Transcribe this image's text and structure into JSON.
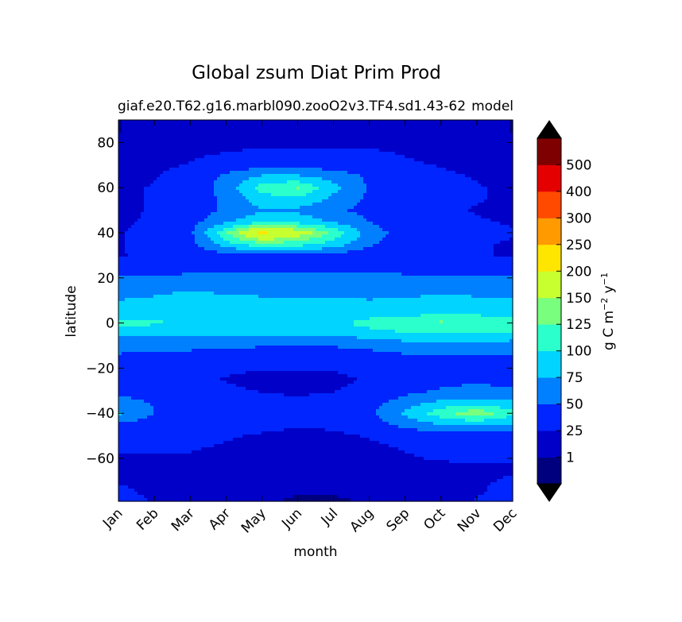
{
  "chart_data": {
    "type": "heatmap",
    "title": "Global zsum Diat Prim Prod",
    "subtitle_left": "giaf.e20.T62.g16.marbl090.zooO2v3.TF4.sd1.43-62",
    "subtitle_right": "model",
    "xlabel": "month",
    "ylabel": "latitude",
    "x_categories": [
      "Jan",
      "Feb",
      "Mar",
      "Apr",
      "May",
      "Jun",
      "Jul",
      "Aug",
      "Sep",
      "Oct",
      "Nov",
      "Dec"
    ],
    "ylim": [
      -79,
      90
    ],
    "yticks": [
      80,
      60,
      40,
      20,
      0,
      -20,
      -40,
      -60
    ],
    "ytick_labels": [
      "80",
      "60",
      "40",
      "20",
      "0",
      "−20",
      "−40",
      "−60"
    ],
    "colorbar": {
      "label_main": "g C m",
      "label_sup1": "−2",
      "label_mid": " y",
      "label_sup2": "−1",
      "levels": [
        0,
        1,
        25,
        50,
        75,
        100,
        125,
        150,
        200,
        250,
        300,
        400,
        500
      ],
      "tick_labels": [
        "1",
        "25",
        "50",
        "75",
        "100",
        "125",
        "150",
        "200",
        "250",
        "300",
        "400",
        "500"
      ],
      "extend": "both",
      "colors": [
        "#00007f",
        "#0000c8",
        "#0025ff",
        "#0080ff",
        "#00d4ff",
        "#2bffcb",
        "#79ff7d",
        "#c8ff2e",
        "#ffe600",
        "#ff9a00",
        "#ff4a00",
        "#e40000",
        "#7f0000"
      ],
      "under_color": "#000000",
      "over_color": "#000000"
    },
    "field": {
      "lat": [
        90,
        85,
        80,
        75,
        70,
        65,
        60,
        55,
        50,
        45,
        40,
        35,
        30,
        25,
        20,
        15,
        10,
        5,
        0,
        -5,
        -10,
        -15,
        -20,
        -25,
        -30,
        -35,
        -40,
        -45,
        -50,
        -55,
        -60,
        -65,
        -70,
        -75,
        -79
      ],
      "values": [
        [
          0,
          12,
          12,
          18,
          18,
          18,
          18,
          18,
          16,
          14,
          12,
          0
        ],
        [
          0,
          14,
          14,
          18,
          18,
          18,
          18,
          18,
          18,
          14,
          12,
          0
        ],
        [
          12,
          16,
          18,
          20,
          22,
          22,
          22,
          22,
          20,
          16,
          14,
          12
        ],
        [
          16,
          18,
          22,
          26,
          28,
          28,
          28,
          28,
          24,
          20,
          16,
          16
        ],
        [
          18,
          22,
          26,
          34,
          40,
          40,
          38,
          34,
          28,
          24,
          20,
          18
        ],
        [
          20,
          24,
          32,
          55,
          78,
          78,
          66,
          45,
          32,
          28,
          24,
          20
        ],
        [
          22,
          26,
          34,
          60,
          110,
          128,
          82,
          48,
          34,
          30,
          26,
          22
        ],
        [
          22,
          26,
          34,
          56,
          90,
          95,
          70,
          45,
          34,
          30,
          26,
          22
        ],
        [
          22,
          26,
          34,
          55,
          72,
          70,
          55,
          42,
          34,
          28,
          24,
          22
        ],
        [
          22,
          28,
          40,
          70,
          92,
          90,
          70,
          50,
          36,
          30,
          26,
          24
        ],
        [
          24,
          30,
          45,
          120,
          205,
          170,
          118,
          62,
          38,
          32,
          28,
          26
        ],
        [
          24,
          30,
          42,
          90,
          118,
          112,
          90,
          55,
          36,
          30,
          26,
          24
        ],
        [
          24,
          28,
          32,
          40,
          45,
          45,
          40,
          34,
          30,
          28,
          26,
          24
        ],
        [
          28,
          32,
          36,
          42,
          45,
          45,
          44,
          42,
          40,
          38,
          34,
          30
        ],
        [
          55,
          56,
          58,
          58,
          57,
          56,
          55,
          55,
          55,
          55,
          55,
          55
        ],
        [
          65,
          66,
          68,
          68,
          66,
          64,
          62,
          62,
          64,
          66,
          66,
          66
        ],
        [
          75,
          80,
          100,
          82,
          80,
          80,
          78,
          76,
          80,
          82,
          80,
          78
        ],
        [
          82,
          84,
          84,
          82,
          80,
          78,
          80,
          82,
          86,
          88,
          88,
          86
        ],
        [
          110,
          104,
          95,
          90,
          88,
          90,
          92,
          112,
          126,
          130,
          126,
          120
        ],
        [
          78,
          78,
          78,
          78,
          78,
          78,
          80,
          85,
          95,
          100,
          100,
          95
        ],
        [
          60,
          58,
          56,
          54,
          52,
          50,
          52,
          56,
          62,
          64,
          62,
          60
        ],
        [
          46,
          44,
          42,
          38,
          34,
          32,
          34,
          40,
          46,
          48,
          48,
          46
        ],
        [
          42,
          40,
          34,
          28,
          26,
          26,
          26,
          32,
          40,
          44,
          46,
          44
        ],
        [
          38,
          36,
          30,
          24,
          20,
          20,
          22,
          26,
          36,
          44,
          46,
          44
        ],
        [
          42,
          40,
          34,
          28,
          24,
          22,
          24,
          30,
          42,
          52,
          56,
          52
        ],
        [
          58,
          48,
          40,
          34,
          30,
          28,
          32,
          40,
          60,
          80,
          84,
          78
        ],
        [
          80,
          50,
          42,
          36,
          32,
          30,
          32,
          44,
          80,
          115,
          145,
          105
        ],
        [
          44,
          40,
          36,
          32,
          28,
          26,
          28,
          36,
          58,
          76,
          80,
          72
        ],
        [
          30,
          30,
          28,
          26,
          24,
          22,
          22,
          26,
          32,
          38,
          38,
          36
        ],
        [
          26,
          26,
          26,
          24,
          22,
          20,
          20,
          22,
          26,
          28,
          28,
          28
        ],
        [
          24,
          24,
          24,
          22,
          20,
          18,
          18,
          20,
          24,
          26,
          26,
          26
        ],
        [
          22,
          20,
          20,
          16,
          14,
          10,
          8,
          12,
          18,
          22,
          24,
          24
        ],
        [
          24,
          20,
          18,
          12,
          8,
          4,
          2,
          6,
          14,
          20,
          24,
          26
        ],
        [
          28,
          22,
          16,
          8,
          4,
          1.5,
          1.5,
          3,
          10,
          18,
          24,
          28
        ],
        [
          32,
          24,
          14,
          6,
          2,
          0,
          0,
          1.5,
          8,
          16,
          26,
          34
        ]
      ]
    }
  }
}
